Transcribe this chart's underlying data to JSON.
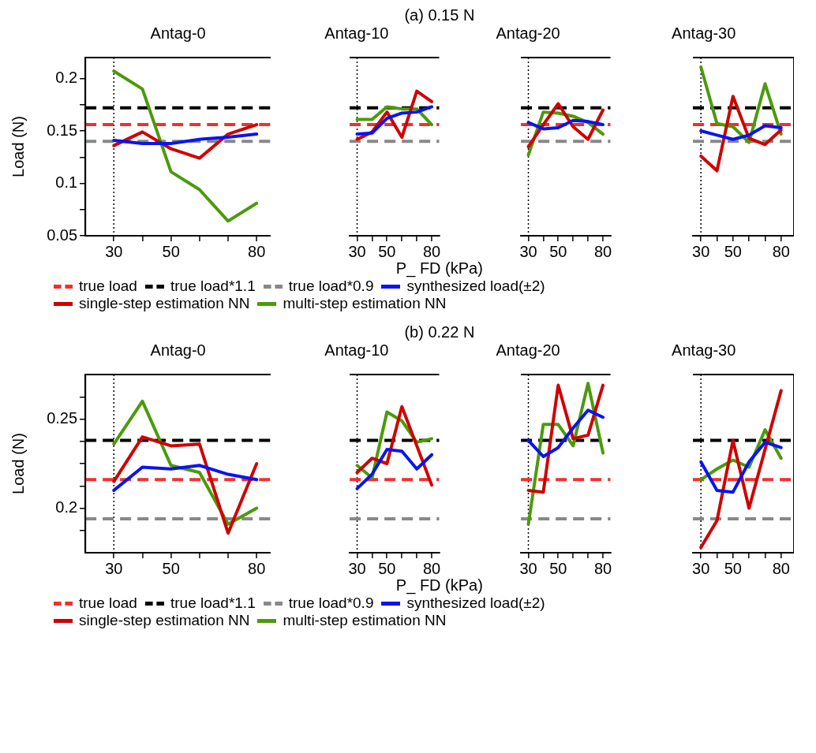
{
  "chart_data": [
    {
      "type": "other",
      "title": "(a) 0.15 N",
      "xlabel": "P_ FD (kPa)"
    },
    {
      "type": "line",
      "title": "Antag-0",
      "ylabel": "Load (N)",
      "legend": "bottom",
      "x": [
        30,
        40,
        50,
        60,
        70,
        80
      ],
      "xlim": [
        20,
        85
      ],
      "xticks": [
        30,
        {
          "value": 40,
          "label": null
        },
        50,
        {
          "value": 60,
          "label": null
        },
        {
          "value": 70,
          "label": null
        },
        80
      ],
      "ylim": [
        0.05,
        0.22
      ],
      "yticks": [
        0.05,
        {
          "value": 0.075,
          "label": null
        },
        0.1,
        {
          "value": 0.125,
          "label": null
        },
        0.15,
        {
          "value": 0.175,
          "label": null
        },
        0.2
      ],
      "ref_lines": [
        {
          "axis": "x",
          "value": 30,
          "color": "#000000",
          "line_style": "dotted"
        },
        {
          "axis": "y",
          "value": 0.156,
          "label": "true load",
          "color": "#f03030",
          "line_style": "dashed"
        },
        {
          "axis": "y",
          "value": 0.172,
          "label": "true load*1.1",
          "color": "#000000",
          "line_style": "dashed"
        },
        {
          "axis": "y",
          "value": 0.14,
          "label": "true load*0.9",
          "color": "#888888",
          "line_style": "dashed"
        }
      ],
      "series": [
        {
          "name": "synthesized load(±2)",
          "color": "#0a14f0",
          "values": [
            0.141,
            0.138,
            0.138,
            0.142,
            0.144,
            0.147
          ]
        },
        {
          "name": "single-step estimation NN",
          "color": "#d00000",
          "values": [
            0.136,
            0.149,
            0.133,
            0.124,
            0.147,
            0.156
          ]
        },
        {
          "name": "multi-step estimation NN",
          "color": "#4c9a0a",
          "values": [
            0.207,
            0.19,
            0.111,
            0.094,
            0.064,
            0.081
          ]
        }
      ]
    },
    {
      "type": "line",
      "title": "Antag-10",
      "tick_labels": "x",
      "x": [
        30,
        40,
        50,
        60,
        70,
        80
      ],
      "xlim": [
        25,
        85
      ],
      "xticks": [
        30,
        {
          "value": 40,
          "label": null
        },
        50,
        {
          "value": 60,
          "label": null
        },
        {
          "value": 70,
          "label": null
        },
        80
      ],
      "ylim": [
        0.05,
        0.22
      ],
      "ref_lines": [
        {
          "axis": "x",
          "value": 30,
          "color": "#000000",
          "line_style": "dotted"
        },
        {
          "axis": "y",
          "value": 0.156,
          "color": "#f03030",
          "line_style": "dashed"
        },
        {
          "axis": "y",
          "value": 0.172,
          "color": "#000000",
          "line_style": "dashed"
        },
        {
          "axis": "y",
          "value": 0.14,
          "color": "#888888",
          "line_style": "dashed"
        }
      ],
      "series": [
        {
          "color": "#0a14f0",
          "values": [
            0.147,
            0.148,
            0.162,
            0.167,
            0.168,
            0.173
          ]
        },
        {
          "color": "#d00000",
          "values": [
            0.142,
            0.149,
            0.168,
            0.144,
            0.188,
            0.178
          ]
        },
        {
          "color": "#4c9a0a",
          "values": [
            0.161,
            0.161,
            0.173,
            0.171,
            0.171,
            0.156
          ]
        }
      ]
    },
    {
      "type": "line",
      "title": "Antag-20",
      "tick_labels": "x",
      "x": [
        30,
        40,
        50,
        60,
        70,
        80
      ],
      "xlim": [
        25,
        85
      ],
      "xticks": [
        30,
        {
          "value": 40,
          "label": null
        },
        50,
        {
          "value": 60,
          "label": null
        },
        {
          "value": 70,
          "label": null
        },
        80
      ],
      "ylim": [
        0.05,
        0.22
      ],
      "ref_lines": [
        {
          "axis": "x",
          "value": 30,
          "color": "#000000",
          "line_style": "dotted"
        },
        {
          "axis": "y",
          "value": 0.156,
          "color": "#f03030",
          "line_style": "dashed"
        },
        {
          "axis": "y",
          "value": 0.172,
          "color": "#000000",
          "line_style": "dashed"
        },
        {
          "axis": "y",
          "value": 0.14,
          "color": "#888888",
          "line_style": "dashed"
        }
      ],
      "series": [
        {
          "color": "#0a14f0",
          "values": [
            0.158,
            0.152,
            0.153,
            0.16,
            0.159,
            0.156
          ]
        },
        {
          "color": "#d00000",
          "values": [
            0.135,
            0.156,
            0.176,
            0.154,
            0.142,
            0.17
          ]
        },
        {
          "color": "#4c9a0a",
          "values": [
            0.127,
            0.168,
            0.167,
            0.164,
            0.158,
            0.147
          ]
        }
      ]
    },
    {
      "type": "line",
      "title": "Antag-30",
      "tick_labels": "x",
      "x": [
        30,
        40,
        50,
        60,
        70,
        80
      ],
      "xlim": [
        25,
        88
      ],
      "xticks": [
        30,
        {
          "value": 40,
          "label": null
        },
        50,
        {
          "value": 60,
          "label": null
        },
        {
          "value": 70,
          "label": null
        },
        80
      ],
      "ylim": [
        0.05,
        0.22
      ],
      "ref_lines": [
        {
          "axis": "x",
          "value": 30,
          "color": "#000000",
          "line_style": "dotted"
        },
        {
          "axis": "y",
          "value": 0.156,
          "color": "#f03030",
          "line_style": "dashed"
        },
        {
          "axis": "y",
          "value": 0.172,
          "color": "#000000",
          "line_style": "dashed"
        },
        {
          "axis": "y",
          "value": 0.14,
          "color": "#888888",
          "line_style": "dashed"
        }
      ],
      "series": [
        {
          "color": "#0a14f0",
          "values": [
            0.15,
            0.146,
            0.142,
            0.146,
            0.155,
            0.153
          ]
        },
        {
          "color": "#d00000",
          "values": [
            0.126,
            0.112,
            0.183,
            0.143,
            0.137,
            0.151
          ]
        },
        {
          "color": "#4c9a0a",
          "values": [
            0.211,
            0.157,
            0.154,
            0.139,
            0.195,
            0.147
          ]
        }
      ]
    },
    {
      "type": "other",
      "title": "(b) 0.22 N",
      "xlabel": "P_ FD (kPa)"
    },
    {
      "type": "line",
      "title": "Antag-0",
      "ylabel": "Load (N)",
      "legend": "bottom",
      "x": [
        30,
        40,
        50,
        60,
        70,
        80
      ],
      "xlim": [
        20,
        85
      ],
      "xticks": [
        30,
        {
          "value": 40,
          "label": null
        },
        50,
        {
          "value": 60,
          "label": null
        },
        {
          "value": 70,
          "label": null
        },
        80
      ],
      "ylim": [
        0.175,
        0.275
      ],
      "yticks": [
        {
          "value": 0.1875,
          "label": null
        },
        0.2,
        {
          "value": 0.2125,
          "label": null
        },
        {
          "value": 0.225,
          "label": null
        },
        {
          "value": 0.2375,
          "label": null
        },
        0.25,
        {
          "value": 0.2625,
          "label": null
        }
      ],
      "ref_lines": [
        {
          "axis": "x",
          "value": 30,
          "color": "#000000",
          "line_style": "dotted"
        },
        {
          "axis": "y",
          "value": 0.216,
          "label": "true load",
          "color": "#f03030",
          "line_style": "dashed"
        },
        {
          "axis": "y",
          "value": 0.238,
          "label": "true load*1.1",
          "color": "#000000",
          "line_style": "dashed"
        },
        {
          "axis": "y",
          "value": 0.194,
          "label": "true load*0.9",
          "color": "#888888",
          "line_style": "dashed"
        }
      ],
      "series": [
        {
          "name": "synthesized load(±2)",
          "color": "#0a14f0",
          "values": [
            0.21,
            0.223,
            0.222,
            0.224,
            0.219,
            0.216
          ]
        },
        {
          "name": "single-step estimation NN",
          "color": "#d00000",
          "values": [
            0.215,
            0.24,
            0.235,
            0.236,
            0.186,
            0.225
          ]
        },
        {
          "name": "multi-step estimation NN",
          "color": "#4c9a0a",
          "values": [
            0.236,
            0.26,
            0.224,
            0.22,
            0.191,
            0.2
          ]
        }
      ]
    },
    {
      "type": "line",
      "title": "Antag-10",
      "tick_labels": "x",
      "x": [
        30,
        40,
        50,
        60,
        70,
        80
      ],
      "xlim": [
        25,
        85
      ],
      "xticks": [
        30,
        {
          "value": 40,
          "label": null
        },
        50,
        {
          "value": 60,
          "label": null
        },
        {
          "value": 70,
          "label": null
        },
        80
      ],
      "ylim": [
        0.175,
        0.275
      ],
      "ref_lines": [
        {
          "axis": "x",
          "value": 30,
          "color": "#000000",
          "line_style": "dotted"
        },
        {
          "axis": "y",
          "value": 0.216,
          "color": "#f03030",
          "line_style": "dashed"
        },
        {
          "axis": "y",
          "value": 0.238,
          "color": "#000000",
          "line_style": "dashed"
        },
        {
          "axis": "y",
          "value": 0.194,
          "color": "#888888",
          "line_style": "dashed"
        }
      ],
      "series": [
        {
          "color": "#0a14f0",
          "values": [
            0.211,
            0.219,
            0.233,
            0.232,
            0.222,
            0.23
          ]
        },
        {
          "color": "#d00000",
          "values": [
            0.22,
            0.228,
            0.225,
            0.257,
            0.235,
            0.213
          ]
        },
        {
          "color": "#4c9a0a",
          "values": [
            0.224,
            0.217,
            0.254,
            0.249,
            0.237,
            0.239
          ]
        }
      ]
    },
    {
      "type": "line",
      "title": "Antag-20",
      "tick_labels": "x",
      "x": [
        30,
        40,
        50,
        60,
        70,
        80
      ],
      "xlim": [
        25,
        85
      ],
      "xticks": [
        30,
        {
          "value": 40,
          "label": null
        },
        50,
        {
          "value": 60,
          "label": null
        },
        {
          "value": 70,
          "label": null
        },
        80
      ],
      "ylim": [
        0.175,
        0.275
      ],
      "ref_lines": [
        {
          "axis": "x",
          "value": 30,
          "color": "#000000",
          "line_style": "dotted"
        },
        {
          "axis": "y",
          "value": 0.216,
          "color": "#f03030",
          "line_style": "dashed"
        },
        {
          "axis": "y",
          "value": 0.238,
          "color": "#000000",
          "line_style": "dashed"
        },
        {
          "axis": "y",
          "value": 0.194,
          "color": "#888888",
          "line_style": "dashed"
        }
      ],
      "series": [
        {
          "color": "#0a14f0",
          "values": [
            0.238,
            0.229,
            0.234,
            0.245,
            0.255,
            0.251
          ]
        },
        {
          "color": "#d00000",
          "values": [
            0.21,
            0.209,
            0.269,
            0.239,
            0.241,
            0.269
          ]
        },
        {
          "color": "#4c9a0a",
          "values": [
            0.191,
            0.247,
            0.247,
            0.235,
            0.27,
            0.231
          ]
        }
      ]
    },
    {
      "type": "line",
      "title": "Antag-30",
      "tick_labels": "x",
      "x": [
        30,
        40,
        50,
        60,
        70,
        80
      ],
      "xlim": [
        25,
        88
      ],
      "xticks": [
        30,
        {
          "value": 40,
          "label": null
        },
        50,
        {
          "value": 60,
          "label": null
        },
        {
          "value": 70,
          "label": null
        },
        80
      ],
      "ylim": [
        0.175,
        0.275
      ],
      "ref_lines": [
        {
          "axis": "x",
          "value": 30,
          "color": "#000000",
          "line_style": "dotted"
        },
        {
          "axis": "y",
          "value": 0.216,
          "color": "#f03030",
          "line_style": "dashed"
        },
        {
          "axis": "y",
          "value": 0.238,
          "color": "#000000",
          "line_style": "dashed"
        },
        {
          "axis": "y",
          "value": 0.194,
          "color": "#888888",
          "line_style": "dashed"
        }
      ],
      "series": [
        {
          "color": "#0a14f0",
          "values": [
            0.226,
            0.21,
            0.209,
            0.226,
            0.237,
            0.234
          ]
        },
        {
          "color": "#d00000",
          "values": [
            0.178,
            0.193,
            0.238,
            0.2,
            0.233,
            0.266
          ]
        },
        {
          "color": "#4c9a0a",
          "values": [
            0.216,
            0.222,
            0.227,
            0.223,
            0.244,
            0.228
          ]
        }
      ]
    }
  ]
}
